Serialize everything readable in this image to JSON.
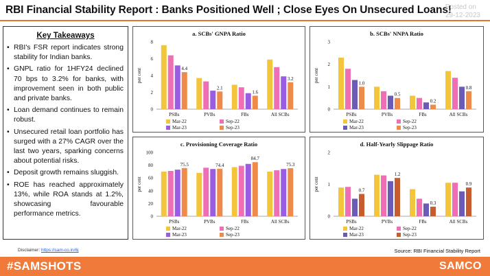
{
  "header": {
    "title": "RBI Financial Stability Report : Banks Positioned Well ; Close Eyes On Unsecured Loans!",
    "posted_label": "Posted on",
    "posted_date": "29-12-2023"
  },
  "takeaways": {
    "heading": "Key Takeaways",
    "items": [
      "RBI's FSR report indicates strong stability for Indian banks.",
      "GNPL ratio for 1HFY24 declined 70 bps to 3.2% for banks, with improvement seen in both public and private banks.",
      "Loan demand continues to remain robust.",
      "Unsecured retail loan portfolio has surged with a 27% CAGR over the last two years, sparking concerns about potential risks.",
      "Deposit growth remains sluggish.",
      "ROE has reached approximately 13%, while ROA stands at 1.2%, showcasing favourable performance metrics."
    ]
  },
  "disclaimer": {
    "label": "Disclaimer:",
    "link": "https://sam-co.in/6j"
  },
  "source": "Source: RBI Financial Stability Report",
  "footer": {
    "hashtag": "#SAMSHOTS",
    "brand": "SAMCO"
  },
  "colors": {
    "accent": "#ef7a3a",
    "mar22": "#f2c53d",
    "sep22": "#ee6fb4",
    "mar23": "#9a5ce0",
    "sep23": "#ee8a4a",
    "mar23_d": "#6b5bb7",
    "sep23_d": "#c75c2e"
  },
  "chart_data": [
    {
      "type": "bar",
      "title": "a. SCBs' GNPA Ratio",
      "ylabel": "per cent",
      "ylim": [
        0,
        8
      ],
      "yticks": [
        0,
        2,
        4,
        6,
        8
      ],
      "categories": [
        "PSBs",
        "PVBs",
        "FBs",
        "All SCBs"
      ],
      "series": [
        {
          "name": "Mar-22",
          "values": [
            7.6,
            3.7,
            2.9,
            5.9
          ]
        },
        {
          "name": "Sep-22",
          "values": [
            6.4,
            3.3,
            2.6,
            5.0
          ]
        },
        {
          "name": "Mar-23",
          "values": [
            5.2,
            2.2,
            1.9,
            3.9
          ]
        },
        {
          "name": "Sep-23",
          "values": [
            4.4,
            2.1,
            1.6,
            3.2
          ]
        }
      ],
      "data_labels": [
        "4.4",
        "2.1",
        "1.6",
        "3.2"
      ],
      "legend": "bottom"
    },
    {
      "type": "bar",
      "title": "b. SCBs' NNPA Ratio",
      "ylabel": "per cent",
      "ylim": [
        0,
        3
      ],
      "yticks": [
        0,
        1,
        2,
        3
      ],
      "categories": [
        "PSBs",
        "PVBs",
        "FBs",
        "All SCBs"
      ],
      "series": [
        {
          "name": "Mar-22",
          "values": [
            2.3,
            1.0,
            0.6,
            1.7
          ]
        },
        {
          "name": "Sep-22",
          "values": [
            1.8,
            0.8,
            0.5,
            1.4
          ]
        },
        {
          "name": "Mar-23",
          "values": [
            1.3,
            0.6,
            0.3,
            1.0
          ]
        },
        {
          "name": "Sep-23",
          "values": [
            1.0,
            0.5,
            0.2,
            0.8
          ]
        }
      ],
      "data_labels": [
        "1.0",
        "0.5",
        "0.2",
        "0.8"
      ],
      "legend": "bottom"
    },
    {
      "type": "bar",
      "title": "c. Provisioning Coverage Ratio",
      "ylabel": "per cent",
      "ylim": [
        0,
        100
      ],
      "yticks": [
        0,
        20,
        40,
        60,
        80,
        100
      ],
      "categories": [
        "PSBs",
        "PVBs",
        "FBs",
        "All SCBs"
      ],
      "series": [
        {
          "name": "Mar-22",
          "values": [
            70,
            68,
            77,
            70
          ]
        },
        {
          "name": "Sep-22",
          "values": [
            71,
            76,
            79,
            72
          ]
        },
        {
          "name": "Mar-23",
          "values": [
            73,
            74,
            82,
            74
          ]
        },
        {
          "name": "Sep-23",
          "values": [
            75.5,
            74.4,
            84.7,
            75.3
          ]
        }
      ],
      "data_labels": [
        "75.5",
        "74.4",
        "84.7",
        "75.3"
      ],
      "legend": "bottom"
    },
    {
      "type": "bar",
      "title": "d. Half-Yearly Slippage Ratio",
      "ylabel": "per cent",
      "ylim": [
        0,
        2
      ],
      "yticks": [
        0,
        1,
        2
      ],
      "categories": [
        "PSBs",
        "PVBs",
        "FBs",
        "All SCBs"
      ],
      "series": [
        {
          "name": "Mar-22",
          "values": [
            0.9,
            1.3,
            0.85,
            1.05
          ]
        },
        {
          "name": "Sep-22",
          "values": [
            0.92,
            1.28,
            0.55,
            1.05
          ]
        },
        {
          "name": "Mar-23",
          "values": [
            0.55,
            1.1,
            0.4,
            0.78
          ]
        },
        {
          "name": "Sep-23",
          "values": [
            0.7,
            1.2,
            0.3,
            0.9
          ]
        }
      ],
      "data_labels": [
        "0.7",
        "1.2",
        "0.3",
        "0.9"
      ],
      "legend": "bottom"
    }
  ]
}
